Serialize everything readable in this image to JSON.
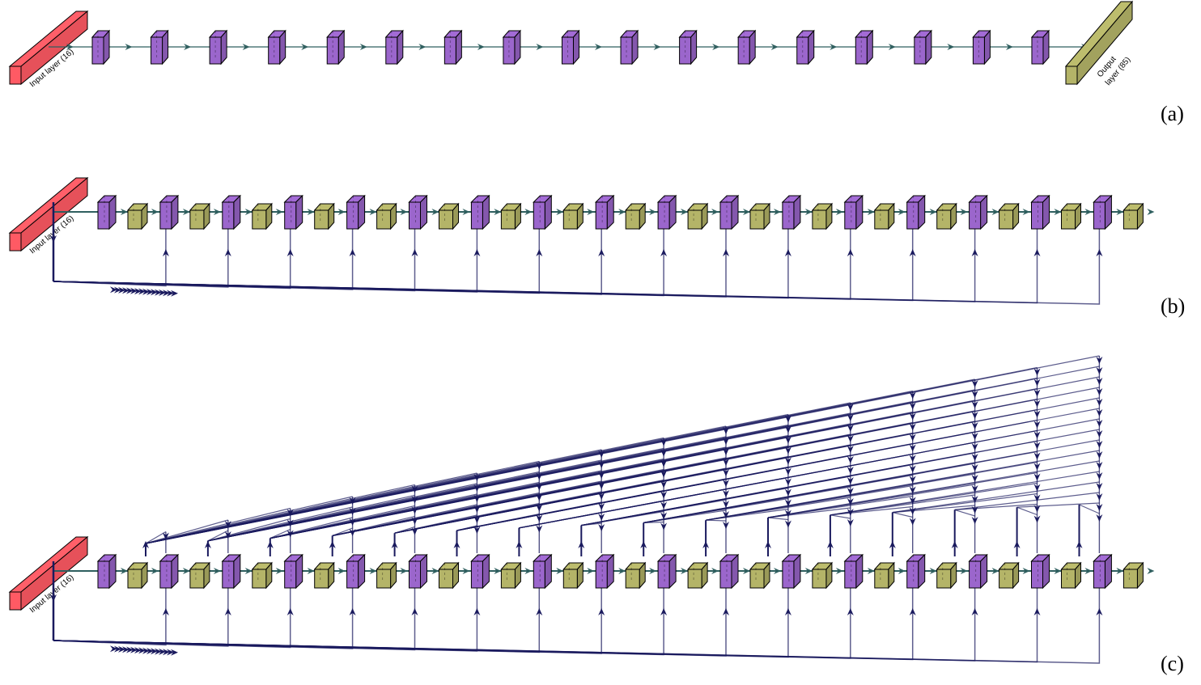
{
  "panels": [
    {
      "label": "(a)",
      "input_label": "Input layer (16)",
      "output_label_line1": "Output",
      "output_label_line2": "layer (85)",
      "hidden_blocks": 17,
      "type": "plain"
    },
    {
      "label": "(b)",
      "input_label": "Input layer (16)",
      "hidden_blocks": 17,
      "type": "input-skip"
    },
    {
      "label": "(c)",
      "input_label": "Input layer (16)",
      "hidden_blocks": 17,
      "type": "input-skip-dense"
    }
  ],
  "colors": {
    "input": "#ff5a64",
    "hidden": "#9b66cc",
    "output": "#b4b468",
    "flow_arrow": "#2f5f5f",
    "skip_arrow": "#1a1a5e"
  }
}
